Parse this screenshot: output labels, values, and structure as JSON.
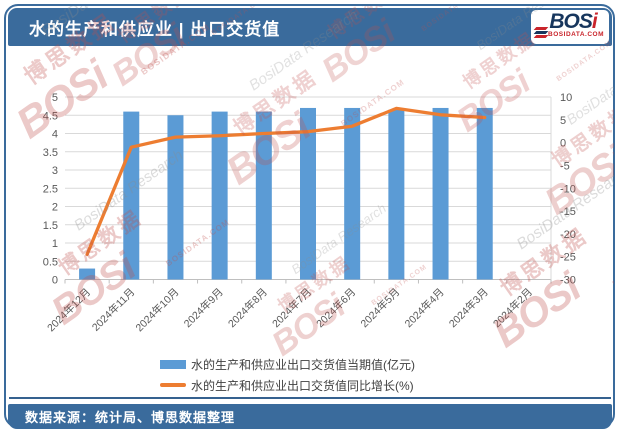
{
  "header": {
    "title": "水的生产和供应业 | 出口交货值",
    "logo": {
      "bos": "BOS",
      "i": "i",
      "site": "BOSIDATA.COM"
    }
  },
  "watermark": {
    "logo": "BOSi",
    "site": "BOSIDATA.COM",
    "cn": "博思数据",
    "en": "BosiData Research"
  },
  "chart_data": {
    "type": "bar+line",
    "categories": [
      "2024年12月",
      "2024年11月",
      "2024年10月",
      "2024年9月",
      "2024年8月",
      "2024年7月",
      "2024年6月",
      "2024年5月",
      "2024年4月",
      "2024年3月",
      "2024年2月"
    ],
    "series": [
      {
        "name": "水的生产和供应业出口交货值当期值(亿元)",
        "type": "bar",
        "axis": "left",
        "values": [
          0.3,
          4.6,
          4.5,
          4.6,
          4.6,
          4.7,
          4.7,
          4.65,
          4.7,
          4.7,
          null
        ]
      },
      {
        "name": "水的生产和供应业出口交货值同比增长(%)",
        "type": "line",
        "axis": "right",
        "values": [
          -24.5,
          -1,
          1.2,
          1.5,
          2,
          2.4,
          3.6,
          7.5,
          6.1,
          5.5,
          null
        ]
      }
    ],
    "left_axis": {
      "min": 0,
      "max": 5,
      "ticks": [
        0,
        0.5,
        1,
        1.5,
        2,
        2.5,
        3,
        3.5,
        4,
        4.5,
        5
      ]
    },
    "right_axis": {
      "min": -30,
      "max": 10,
      "ticks": [
        10,
        5,
        0,
        -5,
        -10,
        -15,
        -20,
        -25,
        -30
      ]
    },
    "grid": true,
    "legend_position": "bottom"
  },
  "colors": {
    "bar": "#5B9BD5",
    "line": "#ED7D31",
    "band": "#3A6B9C",
    "grid": "#D9D9D9",
    "axis_line": "#BFBFBF",
    "axis_text": "#595959",
    "logo_red": "#C9242B",
    "logo_navy": "#17365D"
  },
  "footer": {
    "source": "数据来源：统计局、博思数据整理"
  }
}
